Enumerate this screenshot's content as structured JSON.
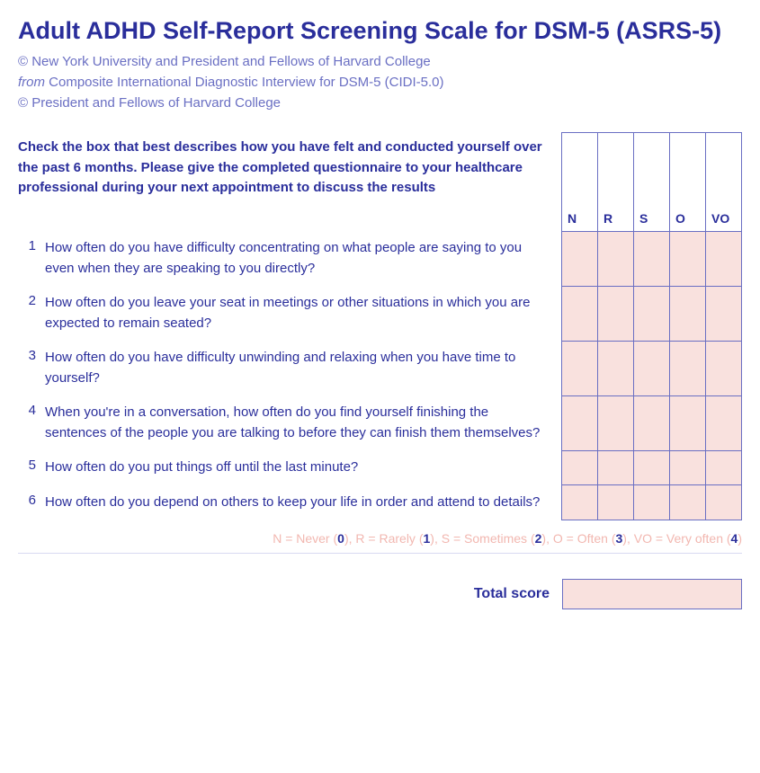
{
  "colors": {
    "primary": "#2a2e9b",
    "muted": "#6a6fc3",
    "fill": "#f9e1de",
    "legend": "#f2b7b0",
    "border": "#6a6fc3",
    "divider": "#d8d9f2"
  },
  "typography": {
    "title_fontsize": "27px",
    "sub_fontsize": "15px",
    "body_fontsize": "15px",
    "colhead_fontsize": "14px",
    "legend_fontsize": "14px",
    "total_label_fontsize": "16px"
  },
  "header": {
    "title": "Adult ADHD Self-Report Screening Scale for DSM-5 (ASRS-5)",
    "line1": "© New York University and President and Fellows of Harvard College",
    "line2_prefix": "from ",
    "line2_rest": "Composite International Diagnostic Interview for DSM-5 (CIDI-5.0)",
    "line3": "© President and Fellows of Harvard College"
  },
  "instructions": "Check the box that best describes how you have felt and conducted yourself over the past 6 months. Please give the completed questionnaire to your healthcare professional during your next appointment to discuss the results",
  "columns": [
    "N",
    "R",
    "S",
    "O",
    "VO"
  ],
  "questions": [
    {
      "n": "1",
      "text": "How often do you have difficulty concentrating on what people are saying to you even when they are speaking to you directly?"
    },
    {
      "n": "2",
      "text": "How often do you leave your seat in meetings or other situations in which you are expected to remain seated?"
    },
    {
      "n": "3",
      "text": "How often do you have difficulty unwinding and relaxing when you have time to yourself?"
    },
    {
      "n": "4",
      "text": "When you're in a conversation, how often do you find yourself finishing the sentences of the people you are talking to before they can finish them themselves?"
    },
    {
      "n": "5",
      "text": "How often do you put things off until the last minute?"
    },
    {
      "n": "6",
      "text": "How often do you depend on others to keep your life in order and attend to details?"
    }
  ],
  "legend": {
    "parts": [
      {
        "label": "N = Never (",
        "val": "0",
        "tail": "), "
      },
      {
        "label": "R = Rarely (",
        "val": "1",
        "tail": "), "
      },
      {
        "label": "S = Sometimes (",
        "val": "2",
        "tail": "), "
      },
      {
        "label": "O = Often (",
        "val": "3",
        "tail": "), "
      },
      {
        "label": "VO = Very often (",
        "val": "4",
        "tail": ")"
      }
    ]
  },
  "total": {
    "label": "Total score",
    "value": ""
  }
}
